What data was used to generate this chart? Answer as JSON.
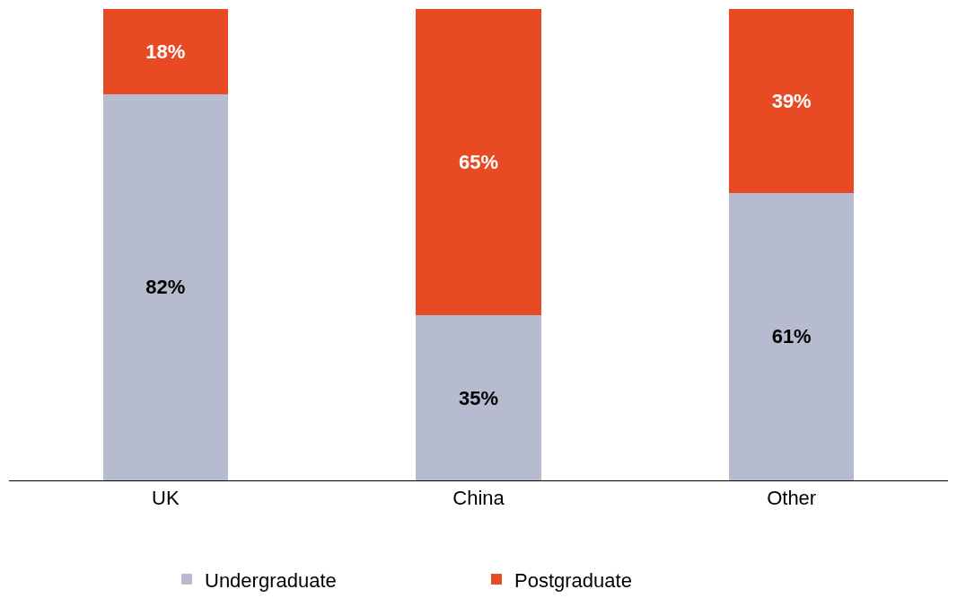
{
  "chart_data": {
    "type": "bar",
    "stacked": true,
    "categories": [
      "UK",
      "China",
      "Other"
    ],
    "series": [
      {
        "name": "Undergraduate",
        "color": "#b7bbd0",
        "values": [
          82,
          35,
          61
        ],
        "value_labels": [
          "82%",
          "35%",
          "61%"
        ]
      },
      {
        "name": "Postgraduate",
        "color": "#e84a23",
        "values": [
          18,
          65,
          39
        ],
        "value_labels": [
          "18%",
          "65%",
          "39%"
        ]
      }
    ],
    "legend": "bottom"
  }
}
